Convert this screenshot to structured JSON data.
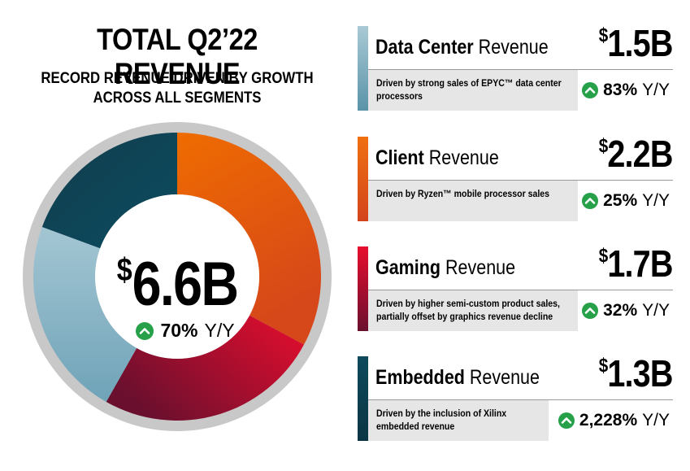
{
  "header": {
    "title": "TOTAL Q2’22 REVENUE",
    "subtitle_line1": "RECORD REVENUE DRIVEN BY GROWTH",
    "subtitle_line2": "ACROSS ALL SEGMENTS"
  },
  "total": {
    "currency": "$",
    "value": "6.6B",
    "growth": "70%",
    "growth_label": "Y/Y"
  },
  "segments": [
    {
      "name": "Data Center",
      "suffix": "Revenue",
      "currency": "$",
      "amount": "1.5B",
      "desc_line1": "Driven by strong sales of EPYC™ data center",
      "desc_line2": "processors",
      "growth": "83%",
      "growth_label": "Y/Y",
      "color": "#5e9bb1"
    },
    {
      "name": "Client",
      "suffix": "Revenue",
      "currency": "$",
      "amount": "2.2B",
      "desc_line1": "Driven by Ryzen™ mobile processor sales",
      "desc_line2": "",
      "growth": "25%",
      "growth_label": "Y/Y",
      "color": "#e8650a"
    },
    {
      "name": "Gaming",
      "suffix": "Revenue",
      "currency": "$",
      "amount": "1.7B",
      "desc_line1": "Driven by higher semi-custom product sales,",
      "desc_line2": "partially offset by graphics revenue decline",
      "growth": "32%",
      "growth_label": "Y/Y",
      "color": "#c2102e"
    },
    {
      "name": "Embedded",
      "suffix": "Revenue",
      "currency": "$",
      "amount": "1.3B",
      "desc_line1": "Driven by the inclusion of Xilinx",
      "desc_line2": "embedded revenue",
      "growth": "2,228%",
      "growth_label": "Y/Y",
      "color": "#0d4a5c"
    }
  ],
  "chart_data": {
    "type": "pie",
    "categories": [
      "Client",
      "Gaming",
      "Data Center",
      "Embedded"
    ],
    "values": [
      2.2,
      1.7,
      1.5,
      1.3
    ],
    "colors": [
      "#e8650a",
      "#b0122e",
      "#8fb8c8",
      "#0d4a5c"
    ]
  }
}
